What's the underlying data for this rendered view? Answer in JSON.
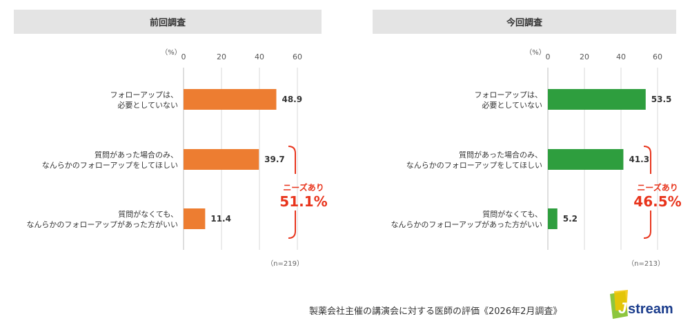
{
  "charts": [
    {
      "header": "前回調査",
      "unit": "（%）",
      "n": "（n=219）",
      "color": "#ED7D31",
      "needs_label": "ニーズあり",
      "needs_value": "51.1%"
    },
    {
      "header": "今回調査",
      "unit": "（%）",
      "n": "（n=213）",
      "color": "#2E9E3E",
      "needs_label": "ニーズあり",
      "needs_value": "46.5%"
    }
  ],
  "accent_color": "#E8341C",
  "footnote": "製薬会社主催の講演会に対する医師の評価《2026年2月調査》",
  "logo_text": "Jstream",
  "chart_data": [
    {
      "type": "bar",
      "orientation": "horizontal",
      "title": "前回調査",
      "categories": [
        [
          "フォローアップは、",
          "必要としていない"
        ],
        [
          "質問があった場合のみ、",
          "なんらかのフォローアップをしてほしい"
        ],
        [
          "質問がなくても、",
          "なんらかのフォローアップがあった方がいい"
        ]
      ],
      "values": [
        48.9,
        39.7,
        11.4
      ],
      "value_labels": [
        "48.9",
        "39.7",
        "11.4"
      ],
      "xlim": [
        0,
        60
      ],
      "ticks": [
        "0",
        "20",
        "40",
        "60"
      ],
      "grid": true
    },
    {
      "type": "bar",
      "orientation": "horizontal",
      "title": "今回調査",
      "categories": [
        [
          "フォローアップは、",
          "必要としていない"
        ],
        [
          "質問があった場合のみ、",
          "なんらかのフォローアップをしてほしい"
        ],
        [
          "質問がなくても、",
          "なんらかのフォローアップがあった方がいい"
        ]
      ],
      "values": [
        53.5,
        41.3,
        5.2
      ],
      "value_labels": [
        "53.5",
        "41.3",
        "5.2"
      ],
      "xlim": [
        0,
        60
      ],
      "ticks": [
        "0",
        "20",
        "40",
        "60"
      ],
      "grid": true
    }
  ]
}
